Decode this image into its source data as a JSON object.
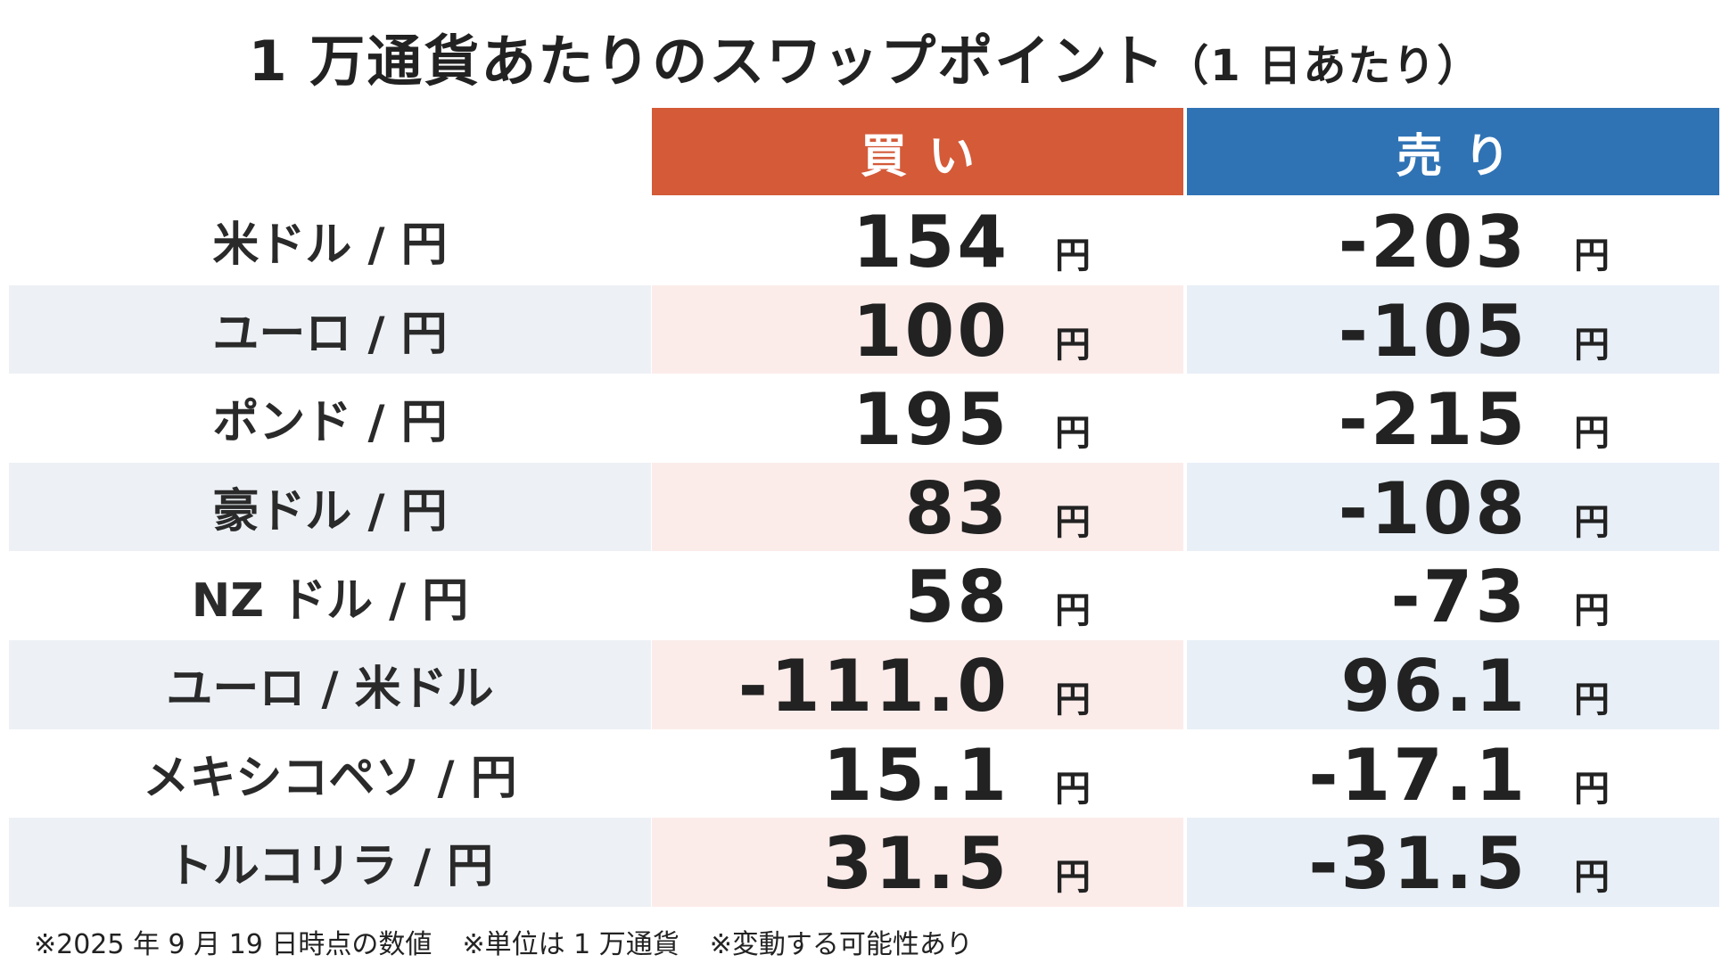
{
  "title": "1 万通貨あたりのスワップポイント",
  "subtitle": "（1 日あたり）",
  "table": {
    "headers": [
      "買い",
      "売り"
    ],
    "unit": "円",
    "rows": [
      [
        "米ドル / 円",
        "154",
        "-203"
      ],
      [
        "ユーロ / 円",
        "100",
        "-105"
      ],
      [
        "ポンド / 円",
        "195",
        "-215"
      ],
      [
        "豪ドル / 円",
        "83",
        "-108"
      ],
      [
        "NZ ドル / 円",
        "58",
        "-73"
      ],
      [
        "ユーロ / 米ドル",
        "-111.0",
        "96.1"
      ],
      [
        "メキシコペソ / 円",
        "15.1",
        "-17.1"
      ],
      [
        "トルコリラ / 円",
        "31.5",
        "-31.5"
      ]
    ]
  },
  "notes": [
    "※2025 年 9 月 19 日時点の数値",
    "※単位は 1 万通貨",
    "※変動する可能性あり"
  ]
}
